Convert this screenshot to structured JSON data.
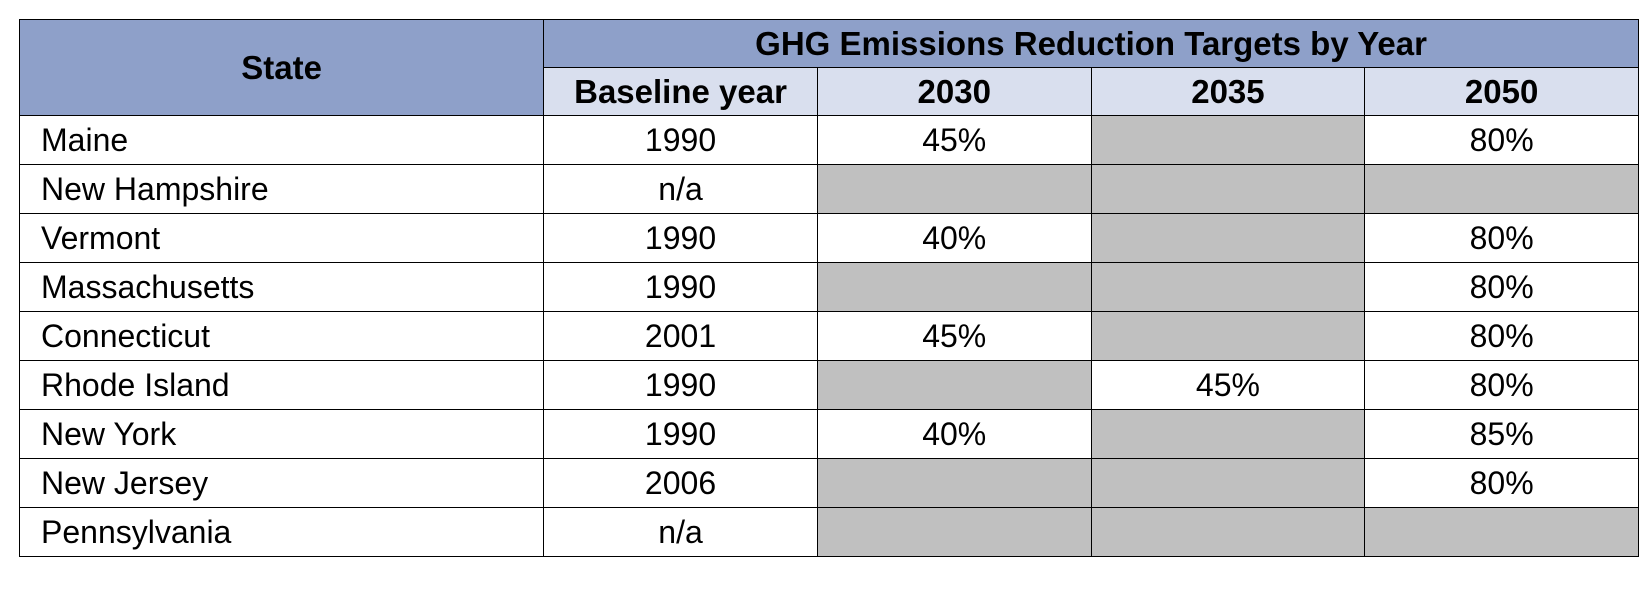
{
  "table": {
    "state_header": "State",
    "group_header": "GHG Emissions Reduction Targets by Year",
    "subheaders": [
      "Baseline year",
      "2030",
      "2035",
      "2050"
    ],
    "rows": [
      {
        "state": "Maine",
        "baseline": "1990",
        "t2030": "45%",
        "t2035": "",
        "t2050": "80%"
      },
      {
        "state": "New Hampshire",
        "baseline": "n/a",
        "t2030": "",
        "t2035": "",
        "t2050": ""
      },
      {
        "state": "Vermont",
        "baseline": "1990",
        "t2030": "40%",
        "t2035": "",
        "t2050": "80%"
      },
      {
        "state": "Massachusetts",
        "baseline": "1990",
        "t2030": "",
        "t2035": "",
        "t2050": "80%"
      },
      {
        "state": "Connecticut",
        "baseline": "2001",
        "t2030": "45%",
        "t2035": "",
        "t2050": "80%"
      },
      {
        "state": "Rhode Island",
        "baseline": "1990",
        "t2030": "",
        "t2035": "45%",
        "t2050": "80%"
      },
      {
        "state": "New York",
        "baseline": "1990",
        "t2030": "40%",
        "t2035": "",
        "t2050": "85%"
      },
      {
        "state": "New Jersey",
        "baseline": "2006",
        "t2030": "",
        "t2035": "",
        "t2050": "80%"
      },
      {
        "state": "Pennsylvania",
        "baseline": "n/a",
        "t2030": "",
        "t2035": "",
        "t2050": ""
      }
    ]
  },
  "colors": {
    "header_dark": "#8ea0c9",
    "header_light": "#d9dfee",
    "empty_cell": "#c0c0c0"
  }
}
